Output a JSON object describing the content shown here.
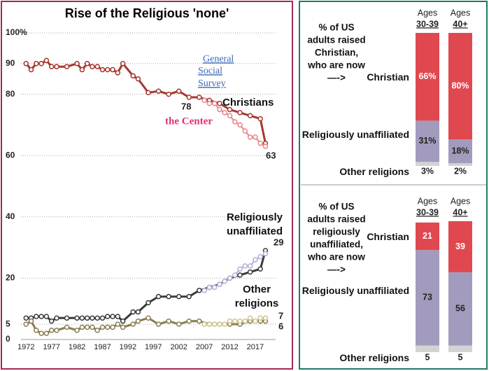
{
  "chart_data": [
    {
      "type": "line",
      "title": "Rise of the Religious 'none'",
      "sources": [
        "General",
        "Social",
        "Survey",
        "the Center"
      ],
      "x": [
        1972,
        1973,
        1974,
        1975,
        1976,
        1977,
        1978,
        1980,
        1982,
        1983,
        1984,
        1985,
        1986,
        1987,
        1988,
        1989,
        1990,
        1991,
        1993,
        1994,
        1996,
        1998,
        2000,
        2002,
        2004,
        2006,
        2008,
        2010,
        2012,
        2014,
        2016,
        2018,
        2019
      ],
      "center_x": [
        2007,
        2008,
        2009,
        2010,
        2011,
        2012,
        2013,
        2014,
        2015,
        2016,
        2017,
        2018,
        2019
      ],
      "series": [
        {
          "name": "Christians",
          "color": "#a8362e",
          "center_color": "#e8858a",
          "values": [
            90,
            88,
            90,
            90,
            91,
            89,
            89,
            89,
            90,
            88,
            90,
            89,
            89,
            88,
            88,
            88,
            87,
            90,
            86,
            85,
            80.5,
            81,
            80,
            81,
            79,
            79,
            78,
            77,
            75,
            74,
            73,
            72,
            64
          ],
          "center_values": [
            78,
            77,
            77,
            75,
            74,
            73,
            71,
            70,
            68,
            66,
            66,
            64,
            63
          ]
        },
        {
          "name": "Religiously unaffiliated",
          "color": "#3a3a3a",
          "center_color": "#b4acd6",
          "values": [
            7,
            7,
            7.5,
            7.5,
            7.5,
            6,
            7,
            7,
            7,
            7,
            7,
            7,
            7,
            7,
            7.5,
            7.5,
            7.5,
            6,
            9,
            9,
            12,
            14,
            14,
            14,
            14,
            16,
            17,
            18,
            20,
            21,
            22,
            23,
            29
          ],
          "center_values": [
            16,
            17,
            17,
            18,
            19,
            20,
            21,
            23,
            24,
            24,
            26,
            27,
            28
          ]
        },
        {
          "name": "Other religions",
          "color": "#8a7d4e",
          "center_color": "#cfc48f",
          "values": [
            5,
            6,
            3,
            2,
            2,
            3,
            3,
            4,
            3,
            4,
            4,
            4,
            3,
            4,
            4,
            4,
            5,
            4,
            5,
            6,
            7,
            5,
            6,
            5,
            6,
            6,
            5,
            5,
            5,
            5,
            6,
            6,
            6
          ],
          "center_values": [
            5,
            5,
            5,
            5,
            5,
            6,
            6,
            6,
            6,
            7,
            6,
            7,
            7
          ]
        }
      ],
      "xlim": [
        1971,
        2021
      ],
      "xticks": [
        1972,
        1977,
        1982,
        1987,
        1992,
        1997,
        2002,
        2007,
        2012,
        2017
      ],
      "ylim": [
        0,
        100
      ],
      "yticks": [
        0,
        5,
        20,
        40,
        60,
        80,
        90,
        {
          "value": 100,
          "label": "100%"
        }
      ],
      "grid": true
    },
    {
      "type": "stacked_bar",
      "title": [
        "% of US",
        "adults raised",
        "Christian,",
        "who are now",
        "—->"
      ],
      "category_title": "Ages",
      "categories": [
        "30-39",
        "40+"
      ],
      "ylim": [
        0,
        100
      ],
      "series": [
        {
          "name": "Christian",
          "color": "#e0484f",
          "values": [
            66,
            80
          ],
          "value_labels": [
            "66%",
            "80%"
          ]
        },
        {
          "name": "Religiously unaffiliated",
          "color": "#a39bbd",
          "values": [
            31,
            18
          ],
          "value_labels": [
            "31%",
            "18%"
          ]
        },
        {
          "name": "Other religions",
          "color": "#d3d3d3",
          "values": [
            3,
            2
          ],
          "value_labels": [
            "3%",
            "2%"
          ]
        }
      ]
    },
    {
      "type": "stacked_bar",
      "title": [
        "% of US",
        "adults raised",
        "religiously",
        "unaffiliated,",
        "who are now",
        "—->"
      ],
      "category_title": "Ages",
      "categories": [
        "30-39",
        "40+"
      ],
      "ylim": [
        0,
        100
      ],
      "series": [
        {
          "name": "Christian",
          "color": "#e0484f",
          "values": [
            21,
            39
          ]
        },
        {
          "name": "Religiously unaffiliated",
          "color": "#a39bbd",
          "values": [
            73,
            56
          ]
        },
        {
          "name": "Other religions",
          "color": "#d3d3d3",
          "values": [
            5,
            5
          ]
        }
      ]
    }
  ]
}
